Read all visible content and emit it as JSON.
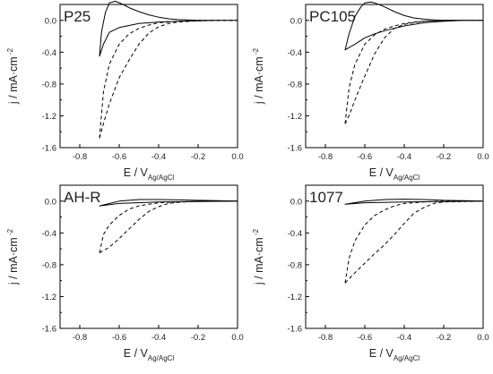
{
  "chart_data": [
    {
      "type": "line",
      "panel_label": "P25",
      "xlabel": "E / V",
      "xlabel_sub": "Ag/AgCl",
      "ylabel": "j / mA·cm",
      "ylabel_sup": "-2",
      "xlim": [
        -0.9,
        0.0
      ],
      "ylim": [
        -1.6,
        0.2
      ],
      "xticks": [
        "-0.8",
        "-0.6",
        "-0.4",
        "-0.2",
        "0.0"
      ],
      "yticks": [
        "0.0",
        "-0.4",
        "-0.8",
        "-1.2",
        "-1.6"
      ],
      "grid": false,
      "series": [
        {
          "style": "solid",
          "x": [
            0.0,
            -0.1,
            -0.2,
            -0.3,
            -0.4,
            -0.5,
            -0.6,
            -0.65,
            -0.68,
            -0.7,
            -0.7,
            -0.69,
            -0.67,
            -0.65,
            -0.62,
            -0.58,
            -0.55,
            -0.5,
            -0.45,
            -0.4,
            -0.35,
            -0.3,
            -0.25,
            -0.2,
            -0.1,
            0.0
          ],
          "y": [
            0.0,
            0.0,
            -0.005,
            -0.01,
            -0.02,
            -0.04,
            -0.09,
            -0.15,
            -0.3,
            -0.45,
            -0.45,
            -0.15,
            0.1,
            0.22,
            0.24,
            0.2,
            0.16,
            0.11,
            0.07,
            0.04,
            0.02,
            0.01,
            0.005,
            0.0,
            0.0,
            0.0
          ]
        },
        {
          "style": "dashed",
          "x": [
            -0.7,
            -0.68,
            -0.65,
            -0.6,
            -0.55,
            -0.5,
            -0.45,
            -0.4,
            -0.35,
            -0.3,
            -0.2,
            -0.1,
            0.0
          ],
          "y": [
            -1.48,
            -0.9,
            -0.55,
            -0.3,
            -0.17,
            -0.1,
            -0.06,
            -0.03,
            -0.02,
            -0.01,
            0.0,
            0.0,
            0.0
          ]
        },
        {
          "style": "dashed",
          "x": [
            -0.7,
            -0.68,
            -0.65,
            -0.6,
            -0.55,
            -0.5,
            -0.45,
            -0.4,
            -0.35,
            -0.3,
            -0.2,
            -0.1,
            0.0
          ],
          "y": [
            -1.48,
            -1.3,
            -1.05,
            -0.72,
            -0.5,
            -0.3,
            -0.16,
            -0.08,
            -0.04,
            -0.02,
            -0.005,
            0.0,
            0.0
          ]
        }
      ]
    },
    {
      "type": "line",
      "panel_label": "PC105",
      "xlabel": "E / V",
      "xlabel_sub": "Ag/AgCl",
      "ylabel": "j / mA·cm",
      "ylabel_sup": "-2",
      "xlim": [
        -0.9,
        0.0
      ],
      "ylim": [
        -1.6,
        0.2
      ],
      "xticks": [
        "-0.8",
        "-0.6",
        "-0.4",
        "-0.2",
        "0.0"
      ],
      "yticks": [
        "0.0",
        "-0.4",
        "-0.8",
        "-1.2",
        "-1.6"
      ],
      "grid": false,
      "series": [
        {
          "style": "solid",
          "x": [
            0.0,
            -0.1,
            -0.2,
            -0.3,
            -0.4,
            -0.5,
            -0.55,
            -0.6,
            -0.65,
            -0.7,
            -0.7,
            -0.68,
            -0.65,
            -0.62,
            -0.6,
            -0.57,
            -0.55,
            -0.5,
            -0.45,
            -0.4,
            -0.35,
            -0.3,
            -0.25,
            -0.2,
            -0.1,
            0.0
          ],
          "y": [
            0.0,
            0.0,
            -0.01,
            -0.03,
            -0.07,
            -0.13,
            -0.17,
            -0.22,
            -0.3,
            -0.37,
            -0.37,
            -0.17,
            0.05,
            0.17,
            0.22,
            0.23,
            0.22,
            0.17,
            0.11,
            0.06,
            0.03,
            0.015,
            0.005,
            0.0,
            0.0,
            0.0
          ]
        },
        {
          "style": "dashed",
          "x": [
            -0.7,
            -0.68,
            -0.65,
            -0.6,
            -0.55,
            -0.5,
            -0.45,
            -0.4,
            -0.35,
            -0.3,
            -0.2,
            -0.1,
            0.0
          ],
          "y": [
            -1.3,
            -0.85,
            -0.55,
            -0.3,
            -0.18,
            -0.11,
            -0.07,
            -0.04,
            -0.02,
            -0.01,
            0.0,
            0.0,
            0.0
          ]
        },
        {
          "style": "dashed",
          "x": [
            -0.7,
            -0.68,
            -0.65,
            -0.6,
            -0.55,
            -0.5,
            -0.45,
            -0.4,
            -0.35,
            -0.3,
            -0.2,
            -0.1,
            0.0
          ],
          "y": [
            -1.3,
            -1.2,
            -1.0,
            -0.7,
            -0.42,
            -0.22,
            -0.1,
            -0.05,
            -0.03,
            -0.01,
            0.0,
            0.0,
            0.0
          ]
        }
      ]
    },
    {
      "type": "line",
      "panel_label": "AH-R",
      "xlabel": "E / V",
      "xlabel_sub": "Ag/AgCl",
      "ylabel": "j / mA·cm",
      "ylabel_sup": "-2",
      "xlim": [
        -0.9,
        0.0
      ],
      "ylim": [
        -1.6,
        0.2
      ],
      "xticks": [
        "-0.8",
        "-0.6",
        "-0.4",
        "-0.2",
        "0.0"
      ],
      "yticks": [
        "0.0",
        "-0.4",
        "-0.8",
        "-1.2",
        "-1.6"
      ],
      "grid": false,
      "series": [
        {
          "style": "solid",
          "x": [
            0.0,
            -0.2,
            -0.4,
            -0.6,
            -0.7,
            -0.7,
            -0.6,
            -0.5,
            -0.4,
            -0.3,
            -0.2,
            -0.1,
            0.0
          ],
          "y": [
            0.0,
            -0.005,
            -0.01,
            -0.03,
            -0.06,
            -0.06,
            0.0,
            0.02,
            0.02,
            0.015,
            0.01,
            0.005,
            0.0
          ]
        },
        {
          "style": "dashed",
          "x": [
            -0.7,
            -0.68,
            -0.65,
            -0.6,
            -0.55,
            -0.5,
            -0.45,
            -0.4,
            -0.3,
            -0.2,
            0.0
          ],
          "y": [
            -0.65,
            -0.42,
            -0.3,
            -0.18,
            -0.1,
            -0.06,
            -0.04,
            -0.02,
            -0.01,
            0.0,
            0.0
          ]
        },
        {
          "style": "dashed",
          "x": [
            -0.7,
            -0.65,
            -0.6,
            -0.55,
            -0.5,
            -0.45,
            -0.4,
            -0.35,
            -0.3,
            -0.2,
            0.0
          ],
          "y": [
            -0.65,
            -0.58,
            -0.47,
            -0.35,
            -0.23,
            -0.13,
            -0.07,
            -0.03,
            -0.015,
            0.0,
            0.0
          ]
        }
      ]
    },
    {
      "type": "line",
      "panel_label": "1077",
      "xlabel": "E / V",
      "xlabel_sub": "Ag/AgCl",
      "ylabel": "j / mA·cm",
      "ylabel_sup": "-2",
      "xlim": [
        -0.9,
        0.0
      ],
      "ylim": [
        -1.6,
        0.2
      ],
      "xticks": [
        "-0.8",
        "-0.6",
        "-0.4",
        "-0.2",
        "0.0"
      ],
      "yticks": [
        "0.0",
        "-0.4",
        "-0.8",
        "-1.2",
        "-1.6"
      ],
      "grid": false,
      "series": [
        {
          "style": "solid",
          "x": [
            0.0,
            -0.2,
            -0.4,
            -0.6,
            -0.7,
            -0.7,
            -0.6,
            -0.5,
            -0.4,
            -0.3,
            -0.2,
            -0.1,
            0.0
          ],
          "y": [
            0.0,
            -0.005,
            -0.01,
            -0.02,
            -0.04,
            -0.04,
            0.0,
            0.02,
            0.025,
            0.02,
            0.01,
            0.005,
            0.0
          ]
        },
        {
          "style": "dashed",
          "x": [
            -0.7,
            -0.68,
            -0.65,
            -0.6,
            -0.55,
            -0.5,
            -0.45,
            -0.4,
            -0.3,
            -0.2,
            0.0
          ],
          "y": [
            -1.03,
            -0.72,
            -0.5,
            -0.3,
            -0.18,
            -0.11,
            -0.06,
            -0.03,
            -0.01,
            0.0,
            0.0
          ]
        },
        {
          "style": "dashed",
          "x": [
            -0.7,
            -0.65,
            -0.6,
            -0.55,
            -0.5,
            -0.45,
            -0.4,
            -0.35,
            -0.3,
            -0.25,
            -0.2,
            0.0
          ],
          "y": [
            -1.03,
            -0.9,
            -0.78,
            -0.66,
            -0.55,
            -0.42,
            -0.28,
            -0.15,
            -0.08,
            -0.03,
            -0.01,
            0.0
          ]
        }
      ]
    }
  ]
}
